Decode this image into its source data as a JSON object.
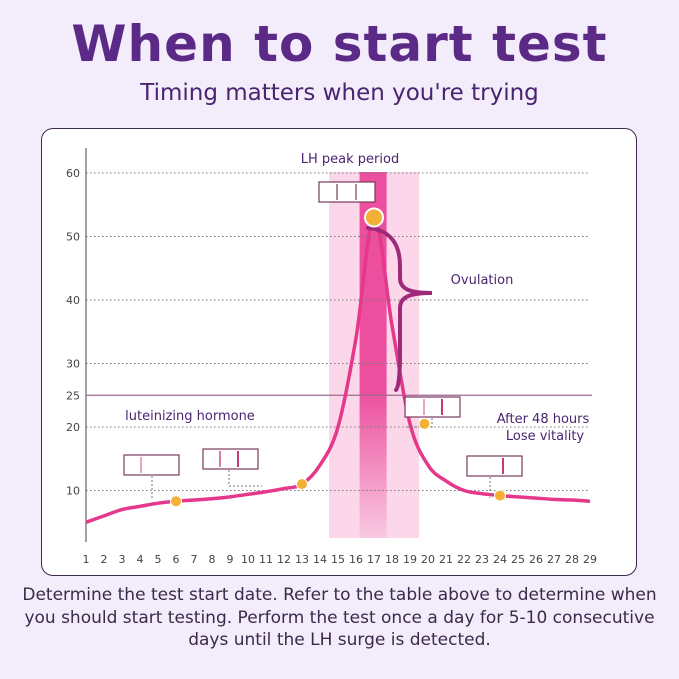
{
  "header": {
    "title": "When to start test",
    "subtitle": "Timing matters when you're trying"
  },
  "footer": {
    "text": "Determine the test start date. Refer to the table above to determine when you should start testing. Perform the test once a day for 5-10 consecutive days until the LH surge is detected."
  },
  "colors": {
    "title": "#5b2a86",
    "curve": "#e6388a",
    "marker": "#f2b134",
    "band_light": "#f9c9e2",
    "band_dark": "#ec4f9d",
    "brace": "#a02a7a",
    "threshold_line": "#9c6890"
  },
  "chart_data": {
    "type": "line",
    "x": [
      1,
      2,
      3,
      4,
      5,
      6,
      7,
      8,
      9,
      10,
      11,
      12,
      13,
      14,
      15,
      16,
      17,
      18,
      19,
      20,
      21,
      22,
      23,
      24,
      25,
      26,
      27,
      28,
      29
    ],
    "xlim": [
      1,
      29
    ],
    "ylim": [
      0,
      60
    ],
    "yticks": [
      10,
      20,
      25,
      30,
      40,
      50,
      60
    ],
    "grid": true,
    "series": [
      {
        "name": "luteinizing hormone",
        "values": [
          5,
          6,
          7,
          7.5,
          8,
          8.3,
          8.5,
          8.7,
          9,
          9.4,
          9.8,
          10.3,
          11,
          14,
          20,
          34,
          53,
          36,
          20.5,
          14,
          11.5,
          10,
          9.5,
          9.2,
          9,
          8.8,
          8.6,
          8.5,
          8.3
        ]
      }
    ],
    "threshold": {
      "y": 25
    },
    "highlight_bands": [
      {
        "x_from": 14.5,
        "x_to": 19.5,
        "label": "LH peak period"
      },
      {
        "x_from": 16.2,
        "x_to": 17.7
      }
    ],
    "markers": [
      {
        "x": 6,
        "y": 8.3,
        "strip": "faint"
      },
      {
        "x": 13,
        "y": 11,
        "strip": "double"
      },
      {
        "x": 17,
        "y": 53,
        "strip": "peak"
      },
      {
        "x": 19.8,
        "y": 20.5,
        "strip": "fading"
      },
      {
        "x": 24,
        "y": 9.2,
        "strip": "single"
      }
    ],
    "annotations": {
      "peak_label": "LH peak period",
      "ovulation": "Ovulation",
      "hormone": "luteinizing hormone",
      "after_line1": "After 48 hours",
      "after_line2": "Lose vitality"
    }
  }
}
